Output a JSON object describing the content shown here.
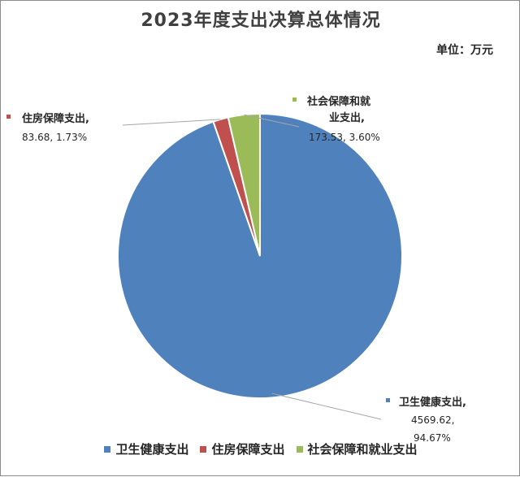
{
  "chart_data": {
    "type": "pie",
    "title": "2023年度支出决算总体情况",
    "unit_label": "单位：万元",
    "slices": [
      {
        "name": "卫生健康支出",
        "value": 4569.62,
        "percent": "94.67%",
        "color": "#4f81bd"
      },
      {
        "name": "住房保障支出",
        "value": 83.68,
        "percent": "1.73%",
        "color": "#c0504d"
      },
      {
        "name": "社会保障和就业支出",
        "value": 173.53,
        "percent": "3.60%",
        "color": "#9bbb59"
      }
    ],
    "legend_position": "bottom"
  },
  "labels": {
    "health": {
      "line1": "卫生健康支出,",
      "line2": "4569.62,",
      "line3": "94.67%"
    },
    "housing": {
      "line1": "住房保障支出,",
      "line2": "83.68, 1.73%"
    },
    "social": {
      "line1": "社会保障和就",
      "line2": "业支出,",
      "line3": "173.53, 3.60%"
    }
  }
}
